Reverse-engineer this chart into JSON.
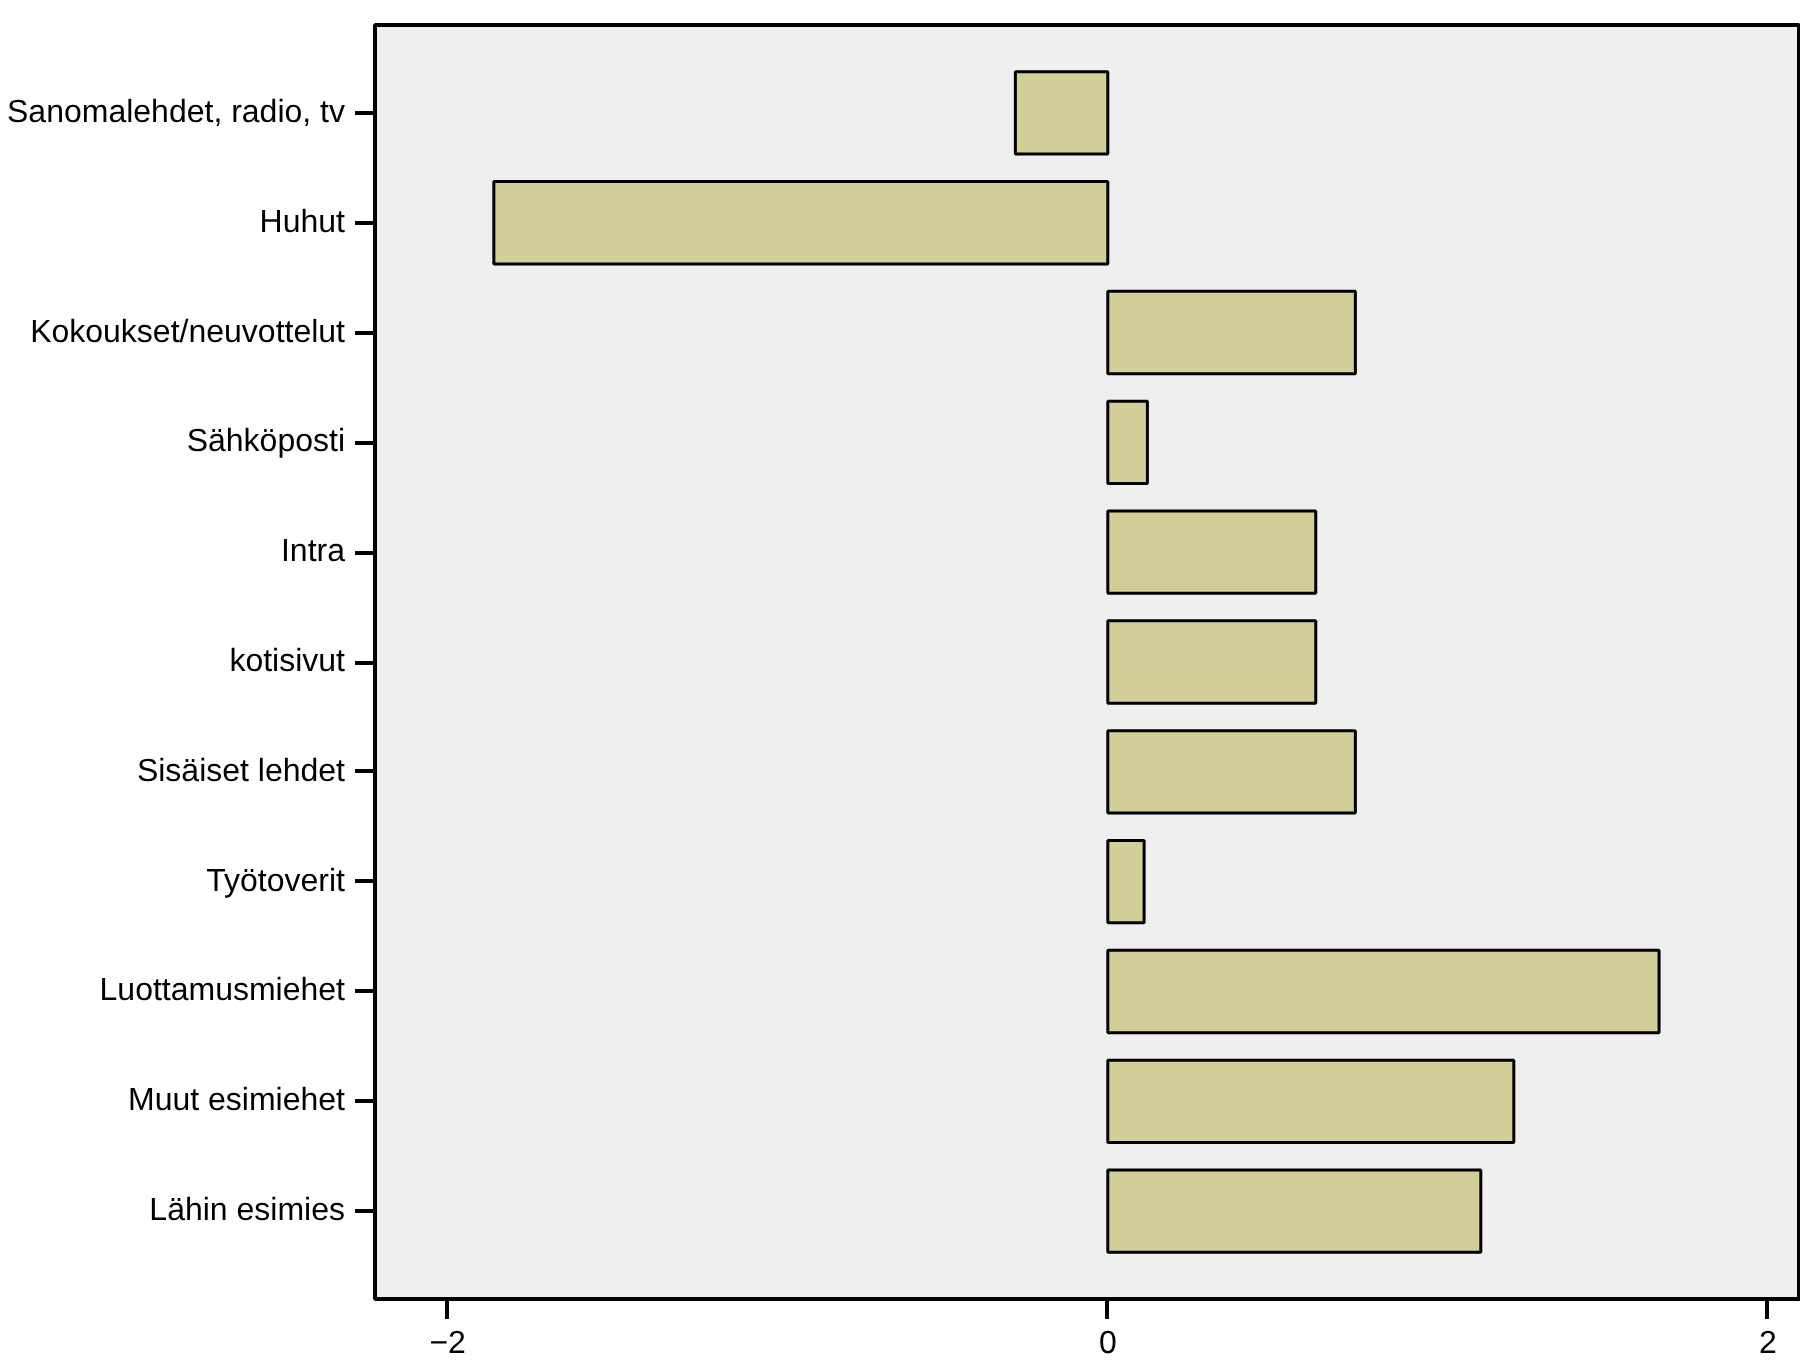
{
  "chart_data": {
    "type": "bar",
    "orientation": "horizontal",
    "categories": [
      "Sanomalehdet, radio, tv",
      "Huhut",
      "Kokoukset/neuvottelut",
      "Sähköposti",
      "Intra",
      "kotisivut",
      "Sisäiset lehdet",
      "Työtoverit",
      "Luottamusmiehet",
      "Muut esimiehet",
      "Lähin esimies"
    ],
    "values": [
      -0.28,
      -1.86,
      0.75,
      0.12,
      0.63,
      0.63,
      0.75,
      0.11,
      1.67,
      1.23,
      1.13
    ],
    "color": "#d3cd98",
    "xlim": [
      -2.22,
      2.1
    ],
    "xticks": [
      -2,
      0,
      2
    ],
    "grid": false
  }
}
